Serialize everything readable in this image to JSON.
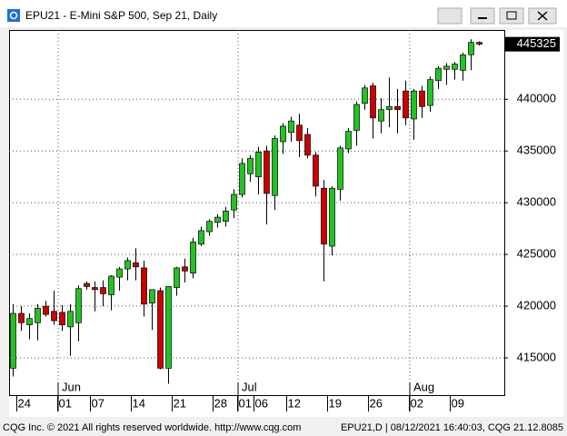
{
  "chart_data": {
    "type": "candlestick",
    "title": "EPU21 - E-Mini S&P 500, Sep 21, Daily",
    "categories": [
      null,
      "24",
      null,
      null,
      null,
      null,
      "01",
      null,
      null,
      null,
      "07",
      null,
      null,
      null,
      null,
      "14",
      null,
      null,
      null,
      null,
      "21",
      null,
      null,
      null,
      null,
      "28",
      null,
      null,
      "01",
      null,
      "06",
      null,
      null,
      null,
      "12",
      null,
      null,
      null,
      null,
      "19",
      null,
      null,
      null,
      null,
      "26",
      null,
      null,
      null,
      null,
      "02",
      null,
      null,
      null,
      null,
      "09",
      null,
      null,
      null
    ],
    "months": [
      "Jun",
      "Jul",
      "Aug"
    ],
    "open": [
      414000,
      419300,
      418200,
      418400,
      420000,
      419500,
      419400,
      418000,
      418400,
      422200,
      421800,
      421800,
      421100,
      422800,
      423600,
      424200,
      423700,
      420300,
      421500,
      414000,
      421800,
      423800,
      423200,
      426000,
      427200,
      428100,
      428200,
      429300,
      430800,
      432800,
      432500,
      435000,
      430700,
      435900,
      436800,
      437500,
      436600,
      434600,
      431400,
      425800,
      431300,
      435200,
      437000,
      439600,
      441300,
      437900,
      439000,
      439300,
      440800,
      438100,
      440800,
      439400,
      441800,
      442900,
      442900,
      442800,
      444300,
      445500
    ],
    "high": [
      420200,
      420000,
      419300,
      420200,
      420500,
      421500,
      420100,
      420200,
      422000,
      422400,
      422400,
      422500,
      423000,
      423800,
      424700,
      425600,
      424400,
      421600,
      421800,
      421900,
      423800,
      424600,
      426600,
      427700,
      428400,
      428900,
      429600,
      431300,
      434300,
      434600,
      435400,
      435500,
      436500,
      437700,
      438300,
      438600,
      437200,
      434900,
      432200,
      431600,
      435500,
      437200,
      439800,
      441400,
      441600,
      440100,
      442100,
      441000,
      441800,
      441000,
      441300,
      442200,
      443200,
      443500,
      443600,
      444500,
      445800,
      445600
    ],
    "low": [
      413200,
      417600,
      416800,
      416700,
      419000,
      418200,
      417600,
      415200,
      416600,
      421600,
      419500,
      420000,
      419600,
      421500,
      422500,
      422500,
      419000,
      417700,
      413900,
      412500,
      421000,
      422300,
      422700,
      425800,
      426800,
      427600,
      427700,
      428500,
      430500,
      432000,
      430800,
      427900,
      429300,
      434700,
      435900,
      434400,
      434300,
      430600,
      422400,
      424900,
      430200,
      434800,
      435500,
      439000,
      436200,
      436700,
      437300,
      436700,
      437500,
      436100,
      438200,
      438800,
      441000,
      441400,
      441900,
      441800,
      442800,
      445200
    ],
    "close": [
      419300,
      418400,
      418800,
      419800,
      419200,
      418600,
      418200,
      419500,
      421700,
      421900,
      421600,
      421200,
      422900,
      423600,
      424400,
      423800,
      420200,
      421600,
      414000,
      421900,
      423700,
      423400,
      426200,
      427300,
      428200,
      428600,
      429200,
      430800,
      433800,
      434300,
      434900,
      430900,
      436200,
      437400,
      437900,
      436000,
      434600,
      431600,
      426000,
      431400,
      435300,
      436900,
      439500,
      441100,
      438200,
      439000,
      439300,
      439000,
      438200,
      440800,
      439300,
      441900,
      443000,
      443200,
      443400,
      444300,
      445500,
      445325
    ],
    "up_color": "#22c322",
    "down_color": "#cc0000",
    "last_price": 445325,
    "ylim": [
      411400,
      446700
    ],
    "yticks": [
      415000,
      420000,
      425000,
      430000,
      435000,
      440000
    ],
    "grid": true
  },
  "footer": {
    "left": "CQG Inc. © 2021 All rights reserved worldwide. http://www.cqg.com",
    "right": "EPU21,D | 08/12/2021 16:40:03, CQG 21.12.8085"
  }
}
